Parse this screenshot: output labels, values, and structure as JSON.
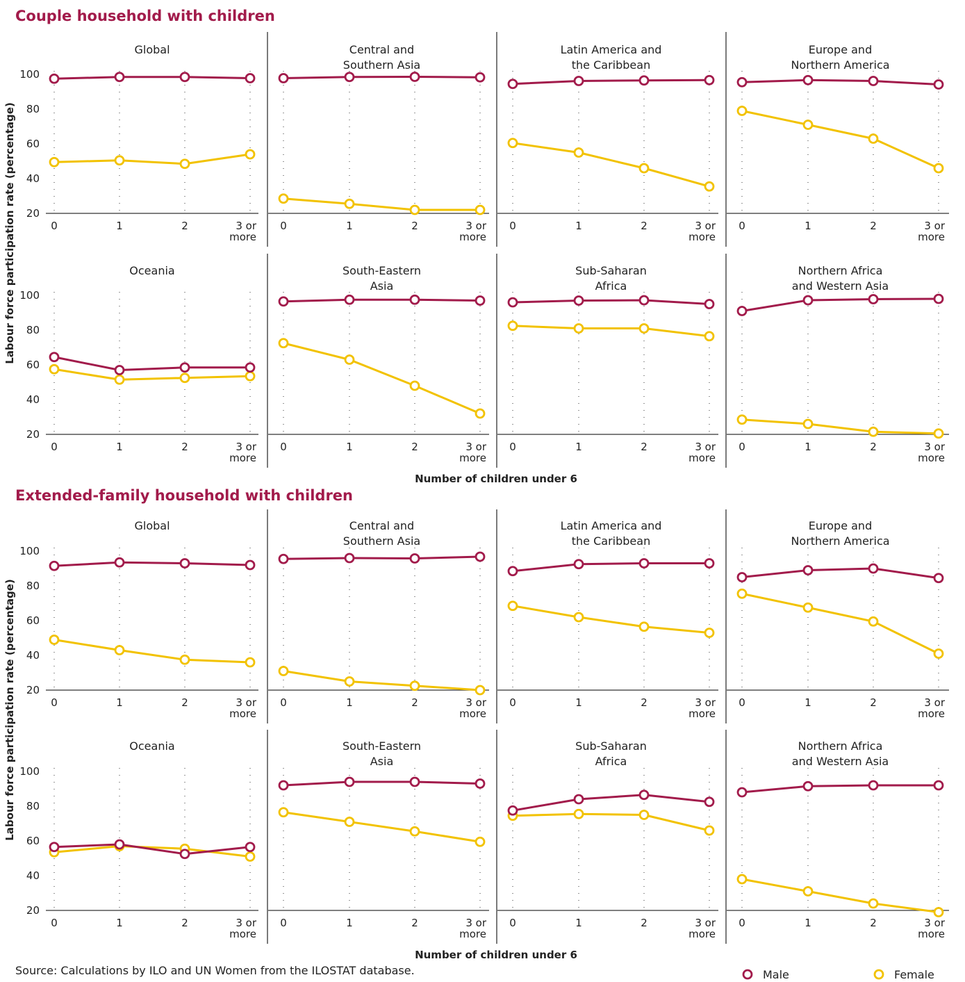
{
  "colors": {
    "male": "#a21b4b",
    "female": "#f2c200",
    "section_title": "#a21b4b",
    "text": "#222222",
    "axis": "#333333",
    "divider": "#333333",
    "grid": "#555555"
  },
  "labels": {
    "ylabel": "Labour force participation rate (percentage)",
    "xlabel": "Number of children under 6",
    "source": "Source: Calculations by ILO and UN Women from the ILOSTAT database.",
    "legend_male": "Male",
    "legend_female": "Female"
  },
  "chart_data": [
    {
      "type": "line",
      "title": "Couple household with children",
      "xlabel": "Number of children under 6",
      "ylabel": "Labour force participation rate (percentage)",
      "categories": [
        "0",
        "1",
        "2",
        "3 or more"
      ],
      "yticks": [
        20,
        40,
        60,
        80,
        100
      ],
      "ylim": [
        20,
        105
      ],
      "panels": [
        {
          "title": "Global",
          "male": [
            97.5,
            98.5,
            98.5,
            97.8
          ],
          "female": [
            49.5,
            50.5,
            48.5,
            54
          ]
        },
        {
          "title": "Central and Southern Asia",
          "male": [
            97.8,
            98.5,
            98.6,
            98.3
          ],
          "female": [
            28.5,
            25.5,
            22,
            22
          ]
        },
        {
          "title": "Latin America and the Caribbean",
          "male": [
            94.5,
            96.2,
            96.5,
            96.7
          ],
          "female": [
            60.5,
            55,
            46,
            35.5
          ]
        },
        {
          "title": "Europe and Northern America",
          "male": [
            95.5,
            96.7,
            96.2,
            94.2
          ],
          "female": [
            79,
            71,
            63,
            46
          ]
        },
        {
          "title": "Oceania",
          "male": [
            64.5,
            57,
            58.5,
            58.5
          ],
          "female": [
            57.5,
            51.5,
            52.5,
            53.5
          ]
        },
        {
          "title": "South-Eastern Asia",
          "male": [
            96.5,
            97.5,
            97.5,
            97
          ],
          "female": [
            72.5,
            63,
            48,
            32
          ]
        },
        {
          "title": "Sub-Saharan Africa",
          "male": [
            96,
            97,
            97.2,
            95
          ],
          "female": [
            82.5,
            81,
            81,
            76.5
          ]
        },
        {
          "title": "Northern Africa and Western Asia",
          "male": [
            91,
            97.2,
            97.8,
            98
          ],
          "female": [
            28.5,
            26,
            21.5,
            20.5
          ]
        }
      ]
    },
    {
      "type": "line",
      "title": "Extended-family household with children",
      "xlabel": "Number of children under 6",
      "ylabel": "Labour force participation rate (percentage)",
      "categories": [
        "0",
        "1",
        "2",
        "3 or more"
      ],
      "yticks": [
        20,
        40,
        60,
        80,
        100
      ],
      "ylim": [
        20,
        105
      ],
      "panels": [
        {
          "title": "Global",
          "male": [
            91.5,
            93.5,
            93,
            92
          ],
          "female": [
            49,
            43,
            37.5,
            36
          ]
        },
        {
          "title": "Central and Southern Asia",
          "male": [
            95.5,
            96,
            95.8,
            96.8
          ],
          "female": [
            31,
            25,
            22.5,
            20
          ]
        },
        {
          "title": "Latin America and the Caribbean",
          "male": [
            88.5,
            92.5,
            93,
            93
          ],
          "female": [
            68.5,
            62,
            56.5,
            53
          ]
        },
        {
          "title": "Europe and Northern America",
          "male": [
            85,
            89,
            90,
            84.5
          ],
          "female": [
            75.5,
            67.5,
            59.5,
            41
          ]
        },
        {
          "title": "Oceania",
          "male": [
            56.5,
            58,
            52.5,
            56.5
          ],
          "female": [
            53.5,
            57,
            55.5,
            51
          ]
        },
        {
          "title": "South-Eastern Asia",
          "male": [
            92,
            94,
            94,
            93
          ],
          "female": [
            76.5,
            71,
            65.5,
            59.5
          ]
        },
        {
          "title": "Sub-Saharan Africa",
          "male": [
            77.5,
            84,
            86.5,
            82.5
          ],
          "female": [
            74.5,
            75.5,
            75,
            66
          ]
        },
        {
          "title": "Northern Africa and Western Asia",
          "male": [
            88,
            91.5,
            92,
            92
          ],
          "female": [
            38,
            31,
            24,
            19
          ]
        }
      ]
    }
  ]
}
